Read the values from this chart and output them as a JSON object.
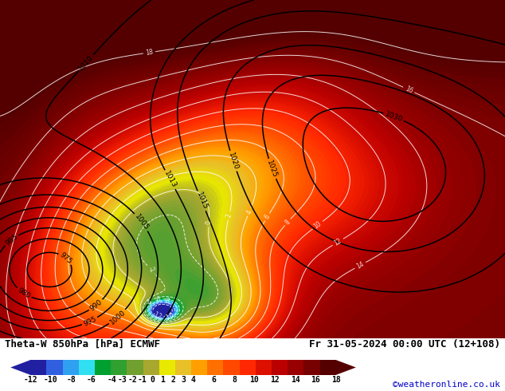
{
  "title_left": "Theta-W 850hPa [hPa] ECMWF",
  "title_right": "Fr 31-05-2024 00:00 UTC (12+108)",
  "credit": "©weatheronline.co.uk",
  "colorbar_levels": [
    -12,
    -10,
    -8,
    -6,
    -4,
    -3,
    -2,
    -1,
    0,
    1,
    2,
    3,
    4,
    6,
    8,
    10,
    12,
    14,
    16,
    18
  ],
  "colorbar_colors": [
    "#2020a0",
    "#3060e0",
    "#30a0f0",
    "#30e0f0",
    "#00a030",
    "#30a030",
    "#70a030",
    "#a8a830",
    "#e8e800",
    "#e8c028",
    "#ffa000",
    "#ff7000",
    "#ff4800",
    "#ff2800",
    "#dd1000",
    "#bb0000",
    "#990000",
    "#770000",
    "#550000"
  ],
  "bg_color": "#ffffff",
  "figsize": [
    6.34,
    4.9
  ],
  "dpi": 100,
  "theta_base": 16.0,
  "press_levels": [
    975,
    980,
    985,
    990,
    995,
    1000,
    1005,
    1010,
    1013,
    1015,
    1020,
    1025,
    1030
  ]
}
